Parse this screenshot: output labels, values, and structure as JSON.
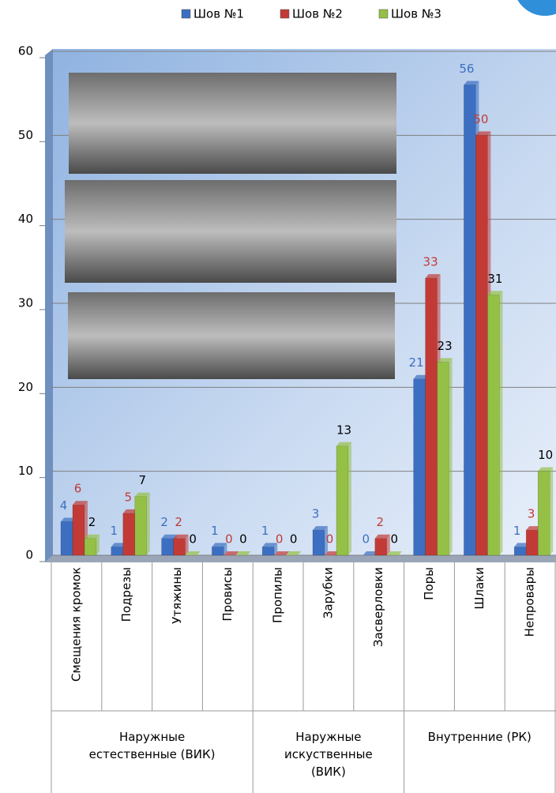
{
  "chart_data": {
    "type": "bar",
    "categories": [
      "Смещения кромок",
      "Подрезы",
      "Утяжины",
      "Провисы",
      "Пропилы",
      "Зарубки",
      "Засверловки",
      "Поры",
      "Шлаки",
      "Непровары"
    ],
    "groups": [
      "Наружные\nестественные  (ВИК)",
      "Наружные\nискуственные\n(ВИК)",
      "Внутренние  (РК)"
    ],
    "series": [
      {
        "name": "Шов №1",
        "color": "#3c6fc2",
        "values": [
          4,
          1,
          2,
          1,
          1,
          3,
          0,
          21,
          56,
          1
        ]
      },
      {
        "name": "Шов №2",
        "color": "#c23a36",
        "values": [
          6,
          5,
          2,
          0,
          0,
          0,
          2,
          33,
          50,
          3
        ]
      },
      {
        "name": "Шов №3",
        "color": "#94c045",
        "values": [
          2,
          7,
          0,
          0,
          0,
          13,
          0,
          23,
          31,
          10
        ]
      }
    ],
    "ylim": [
      0,
      60
    ],
    "yticks": [
      0,
      10,
      20,
      30,
      40,
      50,
      60
    ],
    "grid": true
  }
}
